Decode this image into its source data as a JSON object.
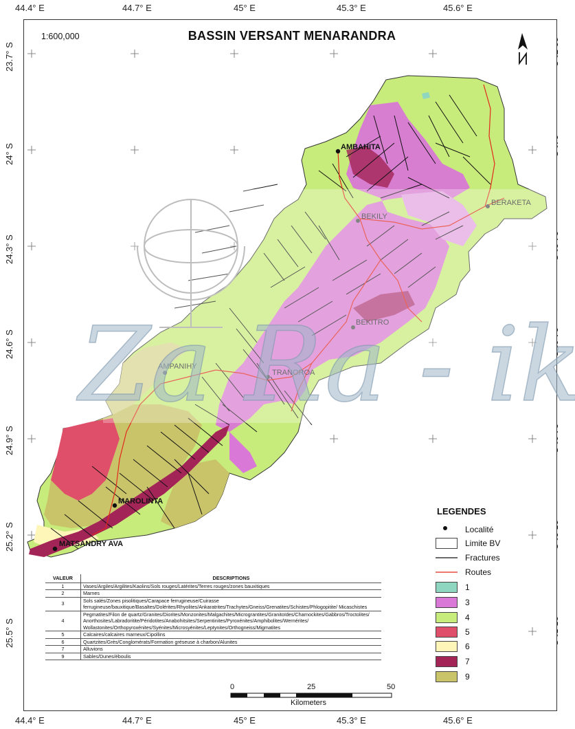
{
  "map": {
    "title": "BASSIN VERSANT MENARANDRA",
    "scale": "1:600,000",
    "north_arrow": "north-arrow-icon",
    "top_lon_labels": [
      "44.4° E",
      "44.7° E",
      "45° E",
      "45.3° E",
      "45.6° E"
    ],
    "bottom_lon_labels": [
      "44.4° E",
      "44.7° E",
      "45° E",
      "45.3° E",
      "45.6° E"
    ],
    "lat_labels": [
      "23.7° S",
      "24° S",
      "24.3° S",
      "24.6° S",
      "24.9° S",
      "25.2° S",
      "25.5° S"
    ],
    "localities": [
      {
        "name": "AMBAHITA"
      },
      {
        "name": "BERAKETA"
      },
      {
        "name": "BEKILY"
      },
      {
        "name": "BEKITRO"
      },
      {
        "name": "AMPANIHY"
      },
      {
        "name": "TRANOROA"
      },
      {
        "name": "MAROLINTA"
      },
      {
        "name": "MATSANDRY AVA"
      }
    ],
    "watermark_text": "Za Ra - iko"
  },
  "legend": {
    "title": "LEGENDES",
    "items": [
      {
        "label": "Localité",
        "kind": "point"
      },
      {
        "label": "Limite BV",
        "kind": "box"
      },
      {
        "label": "Fractures",
        "kind": "line",
        "color": "#111111"
      },
      {
        "label": "Routes",
        "kind": "line",
        "color": "#e2281c"
      },
      {
        "label": "1",
        "kind": "fill",
        "color": "#8fd6c0"
      },
      {
        "label": "3",
        "kind": "fill",
        "color": "#d978d6"
      },
      {
        "label": "4",
        "kind": "fill",
        "color": "#c8ec7c"
      },
      {
        "label": "5",
        "kind": "fill",
        "color": "#e04f6a"
      },
      {
        "label": "6",
        "kind": "fill",
        "color": "#fdf6b8"
      },
      {
        "label": "7",
        "kind": "fill",
        "color": "#a32456"
      },
      {
        "label": "9",
        "kind": "fill",
        "color": "#c9c46a"
      }
    ]
  },
  "table": {
    "headers": [
      "VALEUR",
      "DESCRIPTIONS"
    ],
    "rows": [
      {
        "value": "1",
        "description": "Vases/Argiles/Argilites/Kaolins/Sols rouges/Latérites/Terres rouges/zones bauxitiques"
      },
      {
        "value": "2",
        "description": "Marnes"
      },
      {
        "value": "3",
        "description": "Sols salés/Zones pisolitiques/Carapace ferrugineuse/Cuirasse ferrugineuse/bauxitique/Basaltes/Dolérites/Rhyolites/Ankaratrites/Trachytes/Gneiss/Grenatites/Schistes/Phlogopitite/ Micaschistes"
      },
      {
        "value": "4",
        "description": "Pegmatites/Filon de quartz/Granites/Diorites/Monzonites/Malgachites/Micrograntites/Granitoïdes/Charnockites/Gabbros/Troctolites/ Anorthosites/Labradoritite/Péridotites/Anabohitsites/Serpentinites/Pyroxénites/Amphibolites/Wernérites/ Wollastonites/Orthopyroxénites/Syénites/Microsyénites/Leptynites/Orthogneiss/Migmatites"
      },
      {
        "value": "5",
        "description": "Calcaires/calcaires marneux/Cipollins"
      },
      {
        "value": "6",
        "description": "Quartzites/Grès/Conglomérats/Formation gréseuse à charbon/Alunites"
      },
      {
        "value": "7",
        "description": "Alluvions"
      },
      {
        "value": "9",
        "description": "Sables/Dunes/éboulis"
      }
    ]
  },
  "scalebar": {
    "ticks": [
      "0",
      "25",
      "50"
    ],
    "unit": "Kilometers"
  }
}
